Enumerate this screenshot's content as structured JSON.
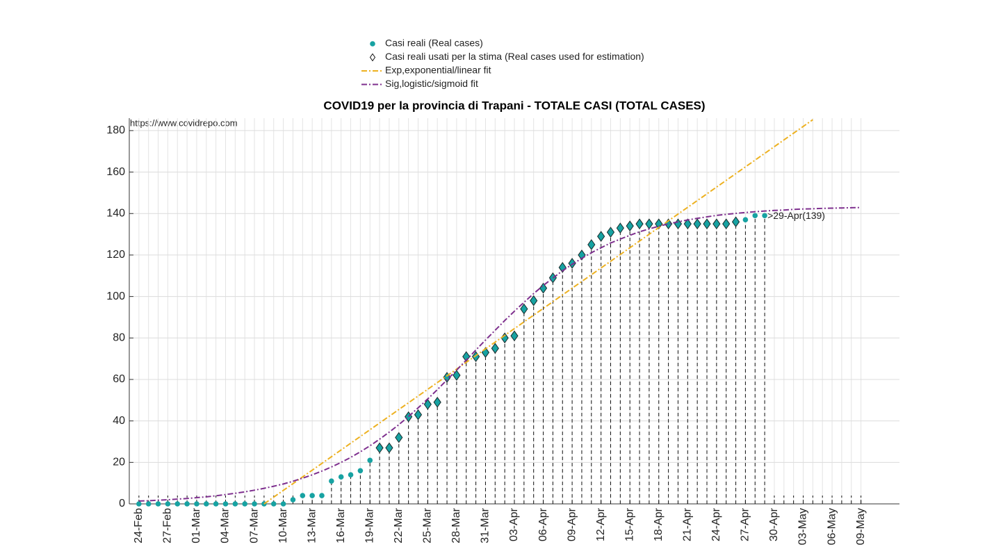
{
  "chart_data": {
    "type": "line",
    "title": "COVID19 per la provincia di Trapani - TOTALE CASI (TOTAL CASES)",
    "source": "https://www.covidrepo.com",
    "annotation": ">29-Apr(139)",
    "categories": [
      "24-Feb",
      null,
      null,
      "27-Feb",
      null,
      null,
      "01-Mar",
      null,
      null,
      "04-Mar",
      null,
      null,
      "07-Mar",
      null,
      null,
      "10-Mar",
      null,
      null,
      "13-Mar",
      null,
      null,
      "16-Mar",
      null,
      null,
      "19-Mar",
      null,
      null,
      "22-Mar",
      null,
      null,
      "25-Mar",
      null,
      null,
      "28-Mar",
      null,
      null,
      "31-Mar",
      null,
      null,
      "03-Apr",
      null,
      null,
      "06-Apr",
      null,
      null,
      "09-Apr",
      null,
      null,
      "12-Apr",
      null,
      null,
      "15-Apr",
      null,
      null,
      "18-Apr",
      null,
      null,
      "21-Apr",
      null,
      null,
      "24-Apr",
      null,
      null,
      "27-Apr",
      null,
      null,
      "30-Apr",
      null,
      null,
      "03-May",
      null,
      null,
      "06-May",
      null,
      null,
      "09-May"
    ],
    "ylim": [
      0,
      186
    ],
    "yticks": [
      0,
      20,
      40,
      60,
      80,
      100,
      120,
      140,
      160,
      180
    ],
    "grid": true,
    "series": [
      {
        "name": "Casi reali (Real cases)",
        "color": "#17a2a2",
        "marker": "circle",
        "line": "none",
        "values": [
          0,
          0,
          0,
          0,
          0,
          0,
          0,
          0,
          0,
          0,
          0,
          0,
          0,
          0,
          0,
          0,
          2,
          4,
          4,
          4,
          11,
          13,
          14,
          16,
          21,
          27,
          27,
          32,
          42,
          43,
          48,
          49,
          61,
          62,
          71,
          71,
          73,
          75,
          80,
          81,
          94,
          98,
          104,
          109,
          114,
          116,
          120,
          125,
          129,
          131,
          133,
          134,
          135,
          135,
          135,
          135,
          135,
          135,
          135,
          135,
          135,
          135,
          136,
          137,
          139,
          139,
          null,
          null,
          null,
          null,
          null,
          null,
          null,
          null,
          null,
          null
        ]
      },
      {
        "name": "Casi reali usati per la stima (Real cases used for estimation)",
        "color": "#17a2a2",
        "marker": "diamond",
        "line": "none",
        "values": [
          null,
          null,
          null,
          null,
          null,
          null,
          null,
          null,
          null,
          null,
          null,
          null,
          null,
          null,
          null,
          null,
          null,
          null,
          null,
          null,
          null,
          null,
          null,
          null,
          null,
          27,
          27,
          32,
          42,
          43,
          48,
          49,
          61,
          62,
          71,
          71,
          73,
          75,
          80,
          81,
          94,
          98,
          104,
          109,
          114,
          116,
          120,
          125,
          129,
          131,
          133,
          134,
          135,
          135,
          135,
          135,
          135,
          135,
          135,
          135,
          135,
          135,
          136,
          null,
          null,
          null,
          null,
          null,
          null,
          null,
          null,
          null,
          null,
          null,
          null,
          null
        ]
      },
      {
        "name": "Exp,exponential/linear fit",
        "color": "#edb120",
        "marker": "none",
        "line": "dashdot",
        "values": [
          null,
          null,
          null,
          null,
          null,
          null,
          null,
          null,
          null,
          null,
          null,
          null,
          null,
          0,
          3.25,
          6.5,
          9.75,
          13,
          16.25,
          19.5,
          22.75,
          26,
          29.25,
          32.5,
          35.75,
          39,
          42.25,
          45.5,
          48.75,
          52,
          55.25,
          58.5,
          61.75,
          65,
          68.25,
          71.5,
          74.75,
          78,
          81.25,
          84.5,
          87.75,
          91,
          94.25,
          97.5,
          100.75,
          104,
          107.25,
          110.5,
          113.75,
          117,
          120.25,
          123.5,
          126.75,
          130,
          133.25,
          136.5,
          139.75,
          143,
          146.25,
          149.5,
          152.75,
          156,
          159.25,
          162.5,
          165.75,
          169,
          172.25,
          175.5,
          178.75,
          182,
          185.25,
          null,
          null,
          null,
          null,
          null
        ]
      },
      {
        "name": "Sig,logistic/sigmoid fit",
        "color": "#7e2f8e",
        "marker": "none",
        "line": "dashdot",
        "values": [
          1.4,
          1.5,
          1.8,
          2.0,
          2.3,
          2.6,
          3.0,
          3.4,
          3.9,
          4.5,
          5.1,
          5.8,
          6.6,
          7.5,
          8.5,
          9.6,
          10.9,
          12.4,
          14.0,
          15.8,
          17.8,
          20.0,
          22.4,
          25.1,
          28.0,
          31.2,
          34.6,
          38.2,
          42.1,
          46.3,
          50.6,
          55.1,
          59.8,
          64.5,
          69.3,
          74.2,
          79.0,
          83.7,
          88.4,
          92.9,
          97.2,
          101.4,
          105.3,
          108.9,
          112.4,
          115.5,
          118.4,
          121.1,
          123.5,
          125.8,
          127.7,
          129.5,
          131.2,
          132.6,
          133.9,
          135.0,
          136.0,
          136.9,
          137.7,
          138.4,
          139.1,
          139.6,
          140.1,
          140.5,
          140.9,
          141.2,
          141.5,
          141.7,
          142.0,
          142.2,
          142.3,
          142.5,
          142.6,
          142.7,
          142.8,
          142.9
        ]
      }
    ]
  }
}
